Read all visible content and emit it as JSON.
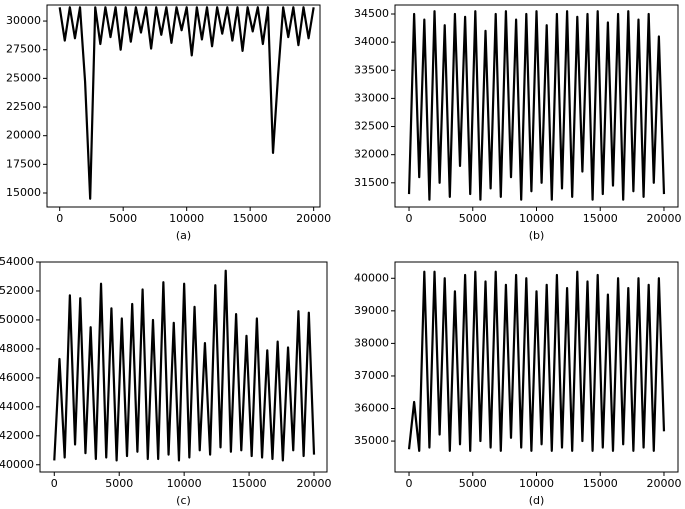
{
  "chart_data": [
    {
      "type": "line",
      "xlabel": "(a)",
      "color": "#000000",
      "x": [
        0,
        400,
        800,
        1200,
        1600,
        2000,
        2400,
        2800,
        3200,
        3600,
        4000,
        4400,
        4800,
        5200,
        5600,
        6000,
        6400,
        6800,
        7200,
        7600,
        8000,
        8400,
        8800,
        9200,
        9600,
        10000,
        10400,
        10800,
        11200,
        11600,
        12000,
        12400,
        12800,
        13200,
        13600,
        14000,
        14400,
        14800,
        15200,
        15600,
        16000,
        16400,
        16800,
        17200,
        17600,
        18000,
        18400,
        18800,
        19200,
        19600,
        20000
      ],
      "values": [
        31200,
        28300,
        31200,
        28500,
        31200,
        24700,
        14500,
        31200,
        28000,
        31200,
        28600,
        31200,
        27500,
        31200,
        28200,
        31200,
        29000,
        31200,
        27600,
        31200,
        28800,
        31200,
        28100,
        31200,
        29200,
        31200,
        27000,
        31200,
        28400,
        31200,
        27800,
        31200,
        28900,
        31200,
        28300,
        31200,
        27400,
        31200,
        29100,
        31200,
        28000,
        31200,
        18500,
        25300,
        31200,
        28600,
        31200,
        27900,
        31200,
        28500,
        31200
      ],
      "xlim": [
        -1000,
        20500
      ],
      "ylim": [
        13780,
        31400
      ],
      "xticks": [
        0,
        5000,
        10000,
        15000,
        20000
      ],
      "yticks": [
        15000,
        17500,
        20000,
        22500,
        25000,
        27500,
        30000
      ]
    },
    {
      "type": "line",
      "xlabel": "(b)",
      "color": "#000000",
      "x": [
        0,
        400,
        800,
        1200,
        1600,
        2000,
        2400,
        2800,
        3200,
        3600,
        4000,
        4400,
        4800,
        5200,
        5600,
        6000,
        6400,
        6800,
        7200,
        7600,
        8000,
        8400,
        8800,
        9200,
        9600,
        10000,
        10400,
        10800,
        11200,
        11600,
        12000,
        12400,
        12800,
        13200,
        13600,
        14000,
        14400,
        14800,
        15200,
        15600,
        16000,
        16400,
        16800,
        17200,
        17600,
        18000,
        18400,
        18800,
        19200,
        19600,
        20000
      ],
      "values": [
        31300,
        34500,
        31600,
        34400,
        31200,
        34550,
        31500,
        34300,
        31250,
        34500,
        31800,
        34450,
        31300,
        34550,
        31200,
        34200,
        31400,
        34500,
        31250,
        34550,
        31600,
        34400,
        31200,
        34500,
        31350,
        34550,
        31500,
        34300,
        31200,
        34500,
        31400,
        34550,
        31250,
        34450,
        31700,
        34500,
        31200,
        34550,
        31300,
        34350,
        31450,
        34500,
        31200,
        34550,
        31350,
        34400,
        31250,
        34500,
        31500,
        34100,
        31300
      ],
      "xlim": [
        -1100,
        21100
      ],
      "ylim": [
        31070,
        34660
      ],
      "xticks": [
        0,
        5000,
        10000,
        15000,
        20000
      ],
      "yticks": [
        31500,
        32000,
        32500,
        33000,
        33500,
        34000,
        34500
      ]
    },
    {
      "type": "line",
      "xlabel": "(c)",
      "color": "#000000",
      "x": [
        0,
        400,
        800,
        1200,
        1600,
        2000,
        2400,
        2800,
        3200,
        3600,
        4000,
        4400,
        4800,
        5200,
        5600,
        6000,
        6400,
        6800,
        7200,
        7600,
        8000,
        8400,
        8800,
        9200,
        9600,
        10000,
        10400,
        10800,
        11200,
        11600,
        12000,
        12400,
        12800,
        13200,
        13600,
        14000,
        14400,
        14800,
        15200,
        15600,
        16000,
        16400,
        16800,
        17200,
        17600,
        18000,
        18400,
        18800,
        19200,
        19600,
        20000
      ],
      "values": [
        40300,
        47300,
        40500,
        51700,
        41400,
        51500,
        40800,
        49500,
        40400,
        52500,
        40500,
        50800,
        40300,
        50100,
        40600,
        51100,
        40900,
        52100,
        40400,
        50000,
        40400,
        52600,
        40700,
        49800,
        40300,
        52500,
        40500,
        50900,
        41000,
        48400,
        40700,
        52400,
        41200,
        53400,
        40900,
        50400,
        41000,
        48900,
        40600,
        50100,
        40500,
        47900,
        40400,
        48500,
        40300,
        48100,
        41000,
        50600,
        40600,
        50500,
        40700
      ],
      "xlim": [
        -1100,
        21000
      ],
      "ylim": [
        39500,
        54000
      ],
      "xticks": [
        0,
        5000,
        10000,
        15000,
        20000
      ],
      "yticks": [
        40000,
        42000,
        44000,
        46000,
        48000,
        50000,
        52000,
        54000
      ]
    },
    {
      "type": "line",
      "xlabel": "(d)",
      "color": "#000000",
      "x": [
        0,
        400,
        800,
        1200,
        1600,
        2000,
        2400,
        2800,
        3200,
        3600,
        4000,
        4400,
        4800,
        5200,
        5600,
        6000,
        6400,
        6800,
        7200,
        7600,
        8000,
        8400,
        8800,
        9200,
        9600,
        10000,
        10400,
        10800,
        11200,
        11600,
        12000,
        12400,
        12800,
        13200,
        13600,
        14000,
        14400,
        14800,
        15200,
        15600,
        16000,
        16400,
        16800,
        17200,
        17600,
        18000,
        18400,
        18800,
        19200,
        19600,
        20000
      ],
      "values": [
        34750,
        36200,
        34700,
        40200,
        34800,
        40200,
        35200,
        40000,
        34700,
        39600,
        34900,
        40100,
        34700,
        40200,
        35000,
        39900,
        34800,
        40200,
        34700,
        39800,
        35100,
        40100,
        34800,
        40000,
        34700,
        39600,
        34900,
        39800,
        34700,
        40100,
        34800,
        39700,
        34700,
        40200,
        35000,
        39900,
        34700,
        40100,
        34800,
        39500,
        34700,
        40000,
        34900,
        39700,
        34700,
        40000,
        34800,
        39800,
        34700,
        40000,
        35300
      ],
      "xlim": [
        -1100,
        21100
      ],
      "ylim": [
        34050,
        40500
      ],
      "xticks": [
        0,
        5000,
        10000,
        15000,
        20000
      ],
      "yticks": [
        35000,
        36000,
        37000,
        38000,
        39000,
        40000
      ]
    }
  ]
}
